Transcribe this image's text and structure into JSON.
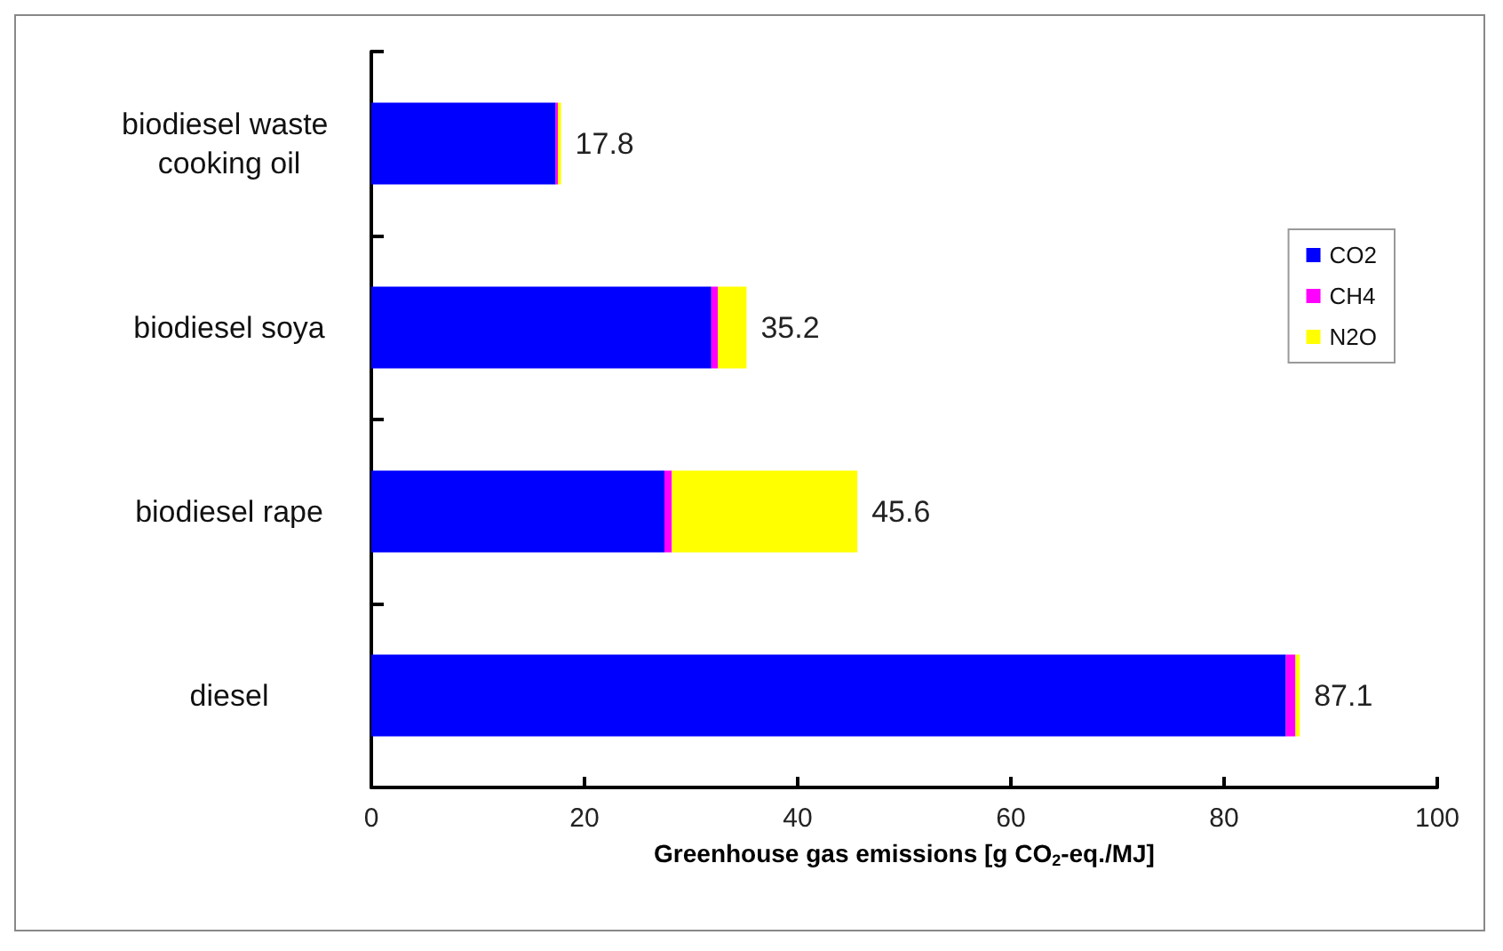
{
  "chart_data": {
    "type": "bar",
    "orientation": "horizontal",
    "stacked": true,
    "categories": [
      "biodiesel waste cooking oil",
      "biodiesel soya",
      "biodiesel rape",
      "diesel"
    ],
    "series": [
      {
        "name": "CO2",
        "color": "#0000ff",
        "values": [
          17.3,
          31.9,
          27.5,
          85.8
        ]
      },
      {
        "name": "CH4",
        "color": "#ff00ff",
        "values": [
          0.2,
          0.6,
          0.7,
          0.9
        ]
      },
      {
        "name": "N2O",
        "color": "#ffff00",
        "values": [
          0.3,
          2.7,
          17.4,
          0.4
        ]
      }
    ],
    "totals": [
      "17.8",
      "35.2",
      "45.6",
      "87.1"
    ],
    "xlabel": "Greenhouse gas emissions [g CO$_{2}$-eq./MJ]",
    "xlim": [
      0,
      100
    ],
    "xticks": [
      0,
      20,
      40,
      60,
      80,
      100
    ],
    "grid": false,
    "legend": "top right"
  }
}
